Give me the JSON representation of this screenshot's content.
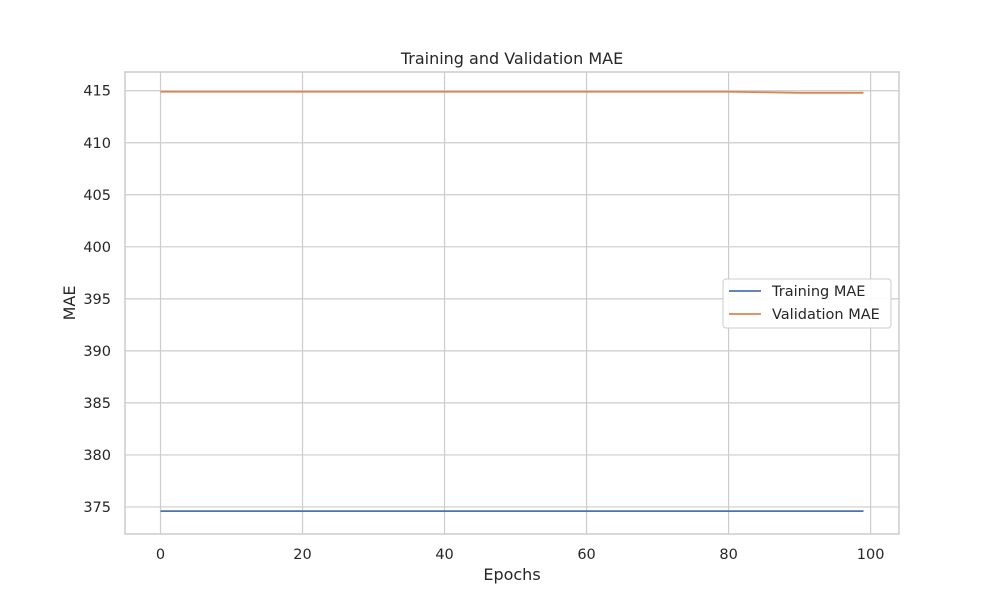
{
  "chart_data": {
    "type": "line",
    "title": "Training and Validation MAE",
    "xlabel": "Epochs",
    "ylabel": "MAE",
    "xlim": [
      -5,
      104
    ],
    "ylim": [
      372.4,
      416.8
    ],
    "xticks": [
      0,
      20,
      40,
      60,
      80,
      100
    ],
    "yticks": [
      375,
      380,
      385,
      390,
      395,
      400,
      405,
      410,
      415
    ],
    "grid": true,
    "legend_position": "center-right",
    "series": [
      {
        "name": "Training MAE",
        "color": "#4c72b0",
        "x": [
          0,
          10,
          20,
          30,
          40,
          50,
          60,
          70,
          80,
          90,
          99
        ],
        "y": [
          374.6,
          374.6,
          374.6,
          374.6,
          374.6,
          374.6,
          374.6,
          374.6,
          374.6,
          374.6,
          374.6
        ]
      },
      {
        "name": "Validation MAE",
        "color": "#dd8452",
        "x": [
          0,
          10,
          20,
          30,
          40,
          50,
          60,
          70,
          80,
          90,
          99
        ],
        "y": [
          414.9,
          414.9,
          414.9,
          414.9,
          414.9,
          414.9,
          414.9,
          414.9,
          414.9,
          414.8,
          414.8
        ]
      }
    ]
  }
}
